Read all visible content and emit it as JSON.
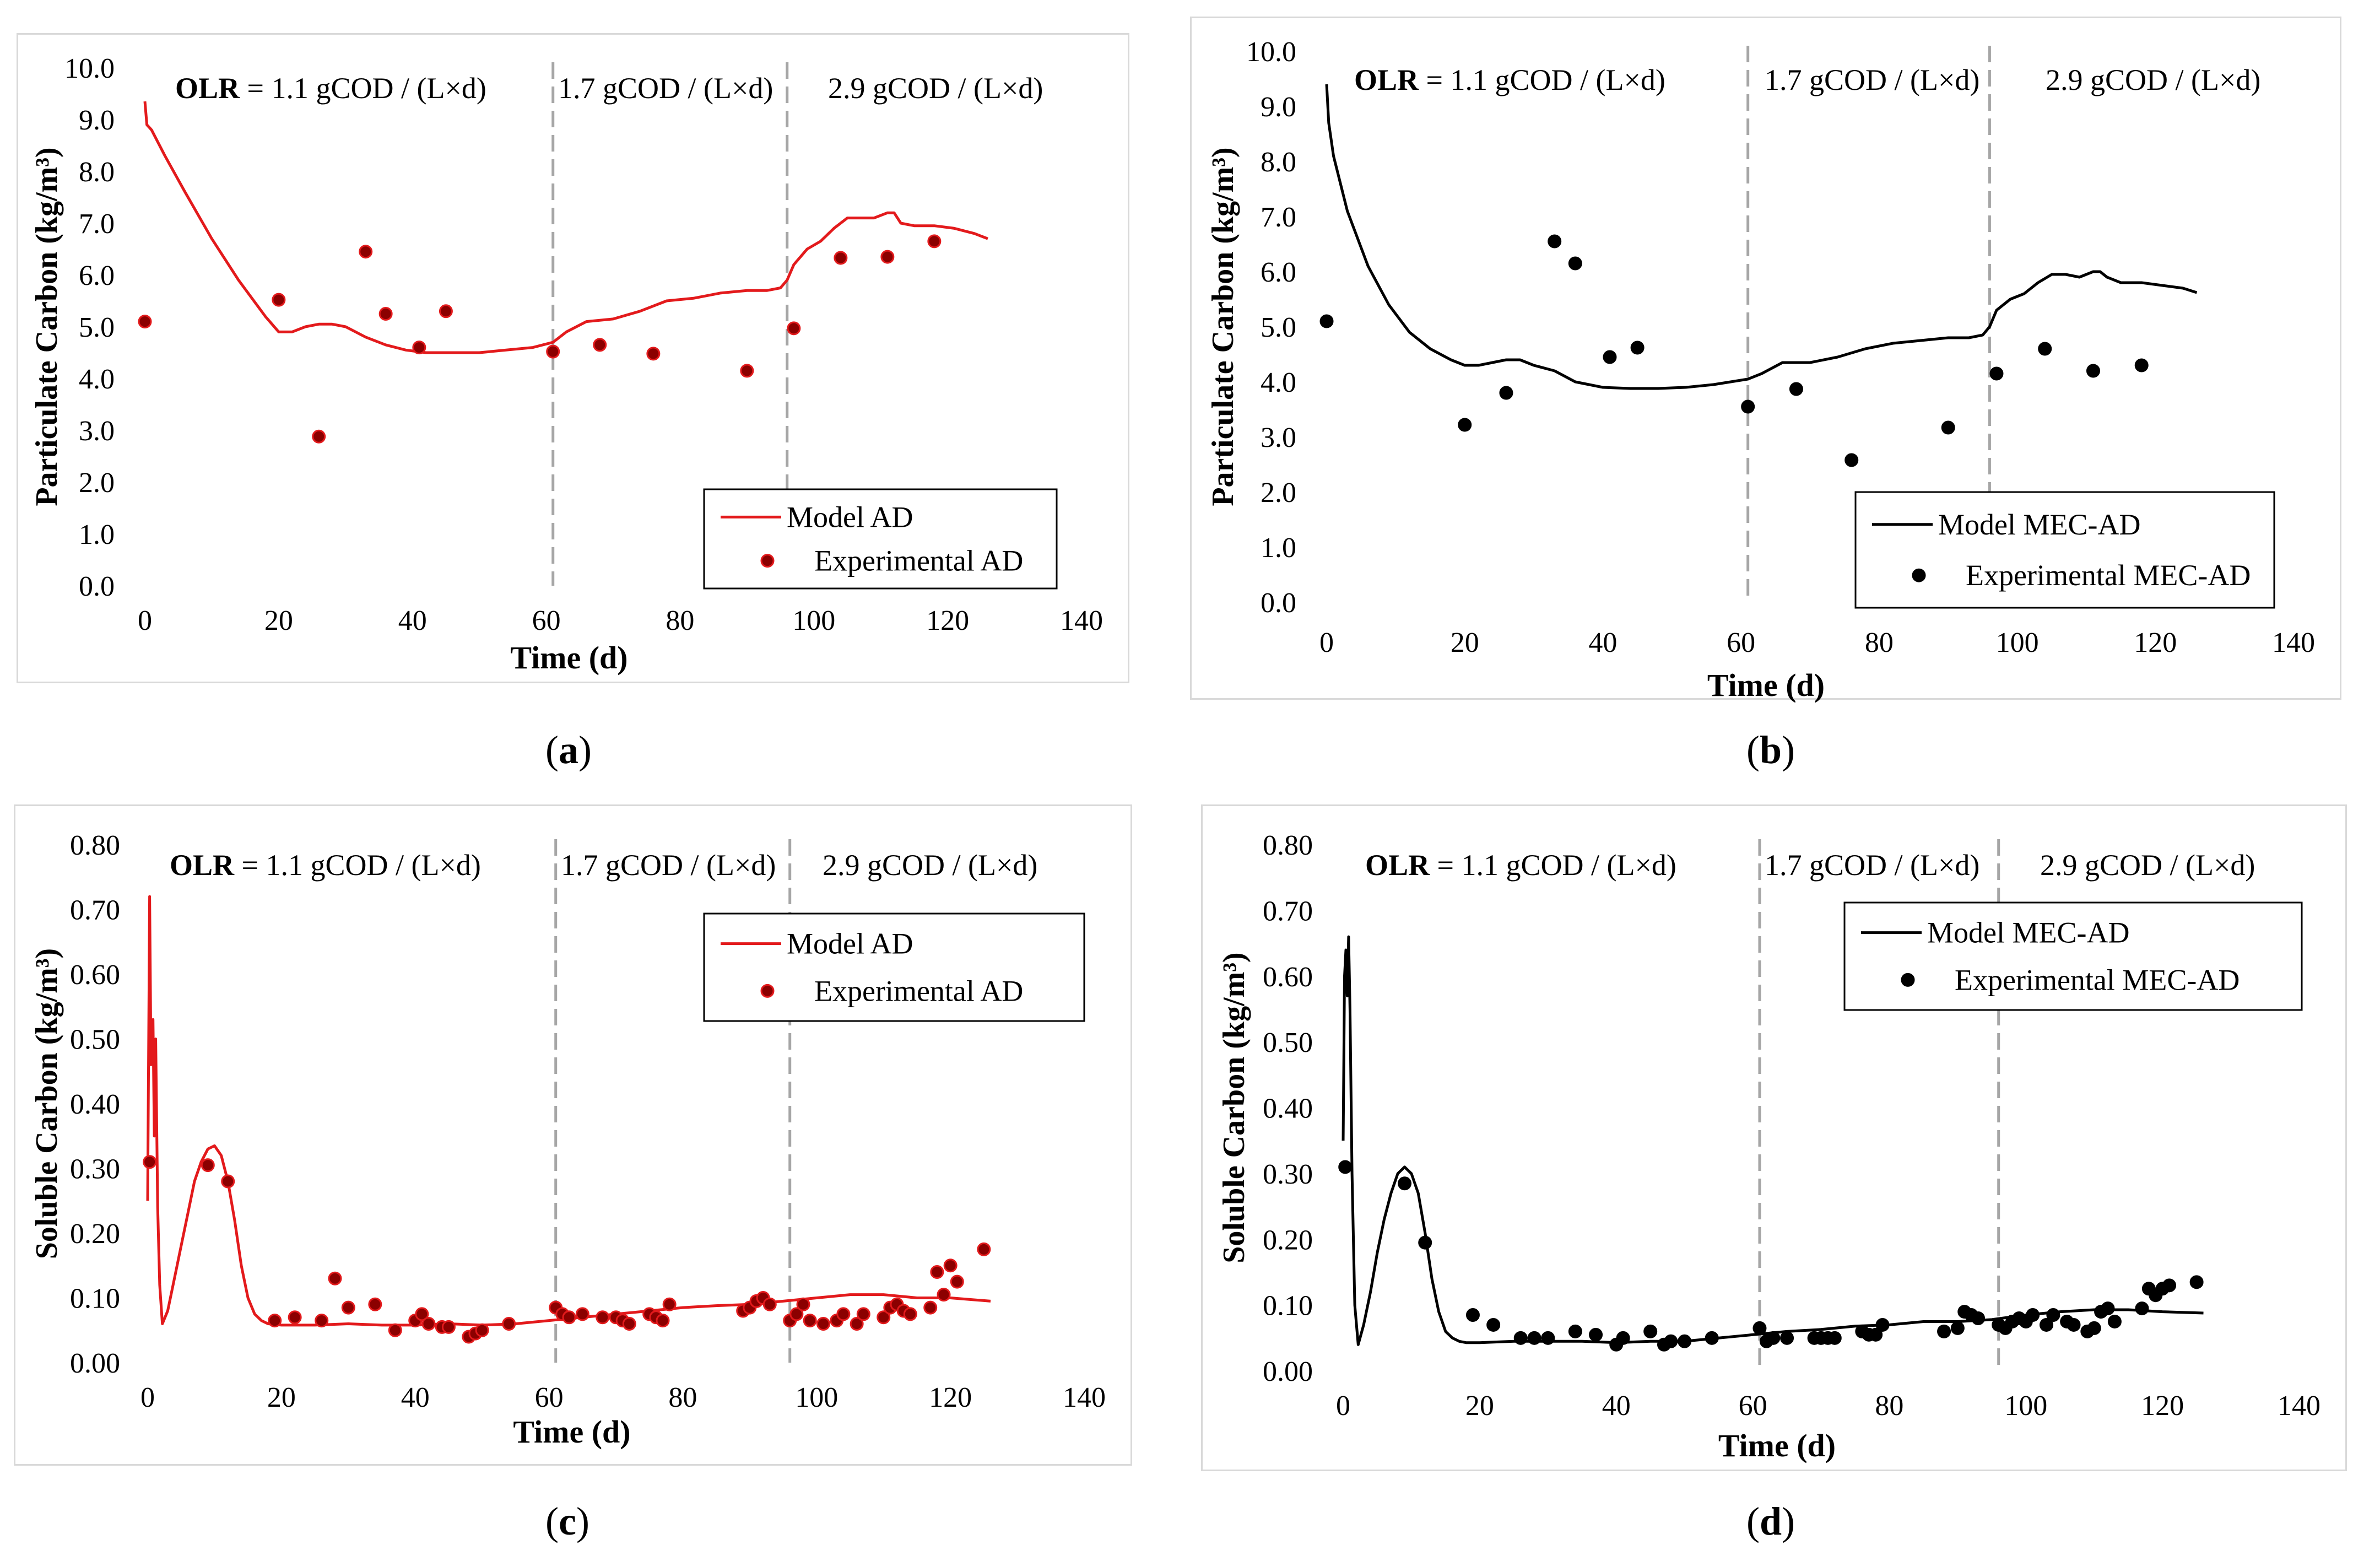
{
  "captions": {
    "a": "a",
    "b": "b",
    "c": "c",
    "d": "d"
  },
  "colors": {
    "red_line": "#e31a1c",
    "red_marker_fill": "#8b0000",
    "black": "#000000",
    "divider": "#a6a6a6",
    "grid": "#d9d9d9"
  },
  "chart_data": [
    {
      "id": "a",
      "type": "line",
      "xlabel": "Time (d)",
      "ylabel": "Particulate Carbon (kg/m³)",
      "xlim": [
        0,
        140
      ],
      "ylim": [
        0,
        10
      ],
      "xticks": [
        "0",
        "20",
        "40",
        "60",
        "80",
        "100",
        "120",
        "140"
      ],
      "yticks": [
        "0.0",
        "1.0",
        "2.0",
        "3.0",
        "4.0",
        "5.0",
        "6.0",
        "7.0",
        "8.0",
        "9.0",
        "10.0"
      ],
      "phase_labels": [
        {
          "bold": "OLR",
          "text": " = 1.1 gCOD / (L×d)"
        },
        {
          "bold": "",
          "text": "1.7 gCOD / (L×d)"
        },
        {
          "bold": "",
          "text": "2.9 gCOD / (L×d)"
        }
      ],
      "phase_dividers": [
        61,
        96
      ],
      "legend": {
        "position": "bottom-right",
        "model": "Model AD",
        "experimental": "Experimental AD"
      },
      "series_style": "red",
      "model": {
        "x": [
          0,
          0.3,
          1,
          3,
          6,
          10,
          14,
          18,
          20,
          22,
          24,
          26,
          28,
          30,
          33,
          36,
          39,
          42,
          46,
          50,
          54,
          58,
          61,
          63,
          66,
          70,
          74,
          78,
          82,
          86,
          90,
          93,
          95,
          96,
          97,
          99,
          101,
          103,
          105,
          107,
          109,
          111,
          112,
          113,
          115,
          118,
          121,
          124,
          126
        ],
        "y": [
          9.35,
          8.9,
          8.8,
          8.3,
          7.6,
          6.7,
          5.9,
          5.2,
          4.9,
          4.9,
          5.0,
          5.05,
          5.05,
          5.0,
          4.8,
          4.65,
          4.55,
          4.5,
          4.5,
          4.5,
          4.55,
          4.6,
          4.7,
          4.9,
          5.1,
          5.15,
          5.3,
          5.5,
          5.55,
          5.65,
          5.7,
          5.7,
          5.75,
          5.9,
          6.2,
          6.5,
          6.65,
          6.9,
          7.1,
          7.1,
          7.1,
          7.2,
          7.2,
          7.0,
          6.95,
          6.95,
          6.9,
          6.8,
          6.7
        ]
      },
      "experimental": {
        "x": [
          0,
          20,
          26,
          33,
          36,
          41,
          45,
          61,
          68,
          76,
          90,
          97,
          104,
          111,
          118
        ],
        "y": [
          5.1,
          5.52,
          2.88,
          6.45,
          5.25,
          4.6,
          5.3,
          4.52,
          4.65,
          4.48,
          4.15,
          4.97,
          6.33,
          6.35,
          6.65
        ]
      }
    },
    {
      "id": "b",
      "type": "line",
      "xlabel": "Time (d)",
      "ylabel": "Particulate Carbon (kg/m³)",
      "xlim": [
        0,
        140
      ],
      "ylim": [
        0,
        10
      ],
      "xticks": [
        "0",
        "20",
        "40",
        "60",
        "80",
        "100",
        "120",
        "140"
      ],
      "yticks": [
        "0.0",
        "1.0",
        "2.0",
        "3.0",
        "4.0",
        "5.0",
        "6.0",
        "7.0",
        "8.0",
        "9.0",
        "10.0"
      ],
      "phase_labels": [
        {
          "bold": "OLR",
          "text": " = 1.1 gCOD / (L×d)"
        },
        {
          "bold": "",
          "text": "1.7 gCOD / (L×d)"
        },
        {
          "bold": "",
          "text": "2.9 gCOD / (L×d)"
        }
      ],
      "phase_dividers": [
        61,
        96
      ],
      "legend": {
        "position": "bottom-right",
        "model": "Model MEC-AD",
        "experimental": "Experimental MEC-AD"
      },
      "series_style": "black",
      "model": {
        "x": [
          0,
          0.3,
          1,
          3,
          6,
          9,
          12,
          15,
          18,
          20,
          22,
          24,
          26,
          28,
          30,
          33,
          36,
          40,
          44,
          48,
          52,
          56,
          61,
          63,
          66,
          70,
          74,
          78,
          82,
          86,
          90,
          93,
          95,
          96,
          97,
          99,
          101,
          103,
          105,
          107,
          109,
          111,
          112,
          113,
          115,
          118,
          121,
          124,
          126
        ],
        "y": [
          9.4,
          8.7,
          8.1,
          7.1,
          6.1,
          5.4,
          4.9,
          4.6,
          4.4,
          4.3,
          4.3,
          4.35,
          4.4,
          4.4,
          4.3,
          4.2,
          4.0,
          3.9,
          3.88,
          3.88,
          3.9,
          3.95,
          4.05,
          4.15,
          4.35,
          4.35,
          4.45,
          4.6,
          4.7,
          4.75,
          4.8,
          4.8,
          4.85,
          5.0,
          5.3,
          5.5,
          5.6,
          5.8,
          5.95,
          5.95,
          5.9,
          6.0,
          6.0,
          5.9,
          5.8,
          5.8,
          5.75,
          5.7,
          5.62
        ]
      },
      "experimental": {
        "x": [
          0,
          20,
          26,
          33,
          36,
          41,
          45,
          61,
          68,
          76,
          90,
          97,
          104,
          111,
          118
        ],
        "y": [
          5.1,
          3.22,
          3.8,
          6.55,
          6.15,
          4.45,
          4.62,
          3.55,
          3.87,
          2.58,
          3.17,
          4.15,
          4.6,
          4.2,
          4.3
        ]
      }
    },
    {
      "id": "c",
      "type": "line",
      "xlabel": "Time (d)",
      "ylabel": "Soluble Carbon (kg/m³)",
      "xlim": [
        0,
        140
      ],
      "ylim": [
        0,
        0.8
      ],
      "xticks": [
        "0",
        "20",
        "40",
        "60",
        "80",
        "100",
        "120",
        "140"
      ],
      "yticks": [
        "0.00",
        "0.10",
        "0.20",
        "0.30",
        "0.40",
        "0.50",
        "0.60",
        "0.70",
        "0.80"
      ],
      "phase_labels": [
        {
          "bold": "OLR",
          "text": " = 1.1 gCOD / (L×d)"
        },
        {
          "bold": "",
          "text": "1.7 gCOD / (L×d)"
        },
        {
          "bold": "",
          "text": "2.9 gCOD / (L×d)"
        }
      ],
      "phase_dividers": [
        61,
        96
      ],
      "legend": {
        "position": "top-right",
        "model": "Model AD",
        "experimental": "Experimental AD"
      },
      "series_style": "red",
      "model": {
        "x": [
          0,
          0.3,
          0.5,
          0.8,
          1.0,
          1.2,
          1.5,
          1.8,
          2.2,
          3,
          4,
          5,
          6,
          7,
          8,
          9,
          10,
          11,
          12,
          13,
          14,
          15,
          16,
          17,
          18,
          20,
          25,
          30,
          35,
          40,
          45,
          50,
          55,
          60,
          65,
          70,
          75,
          80,
          85,
          90,
          95,
          100,
          105,
          110,
          115,
          120,
          126
        ],
        "y": [
          0.25,
          0.72,
          0.46,
          0.53,
          0.35,
          0.5,
          0.24,
          0.12,
          0.06,
          0.08,
          0.13,
          0.18,
          0.23,
          0.28,
          0.31,
          0.33,
          0.335,
          0.32,
          0.28,
          0.22,
          0.15,
          0.1,
          0.075,
          0.065,
          0.06,
          0.058,
          0.058,
          0.06,
          0.058,
          0.058,
          0.06,
          0.058,
          0.06,
          0.065,
          0.07,
          0.075,
          0.08,
          0.085,
          0.088,
          0.09,
          0.095,
          0.1,
          0.105,
          0.105,
          0.1,
          0.1,
          0.095
        ]
      },
      "experimental": {
        "x": [
          0.3,
          9,
          12,
          19,
          22,
          26,
          28,
          30,
          34,
          37,
          40,
          41,
          42,
          44,
          45,
          48,
          49,
          50,
          54,
          61,
          62,
          63,
          65,
          68,
          70,
          71,
          72,
          75,
          76,
          77,
          78,
          89,
          90,
          91,
          92,
          93,
          96,
          97,
          98,
          99,
          101,
          103,
          104,
          106,
          107,
          110,
          111,
          112,
          113,
          114,
          117,
          118,
          119,
          120,
          121,
          125
        ],
        "y": [
          0.31,
          0.305,
          0.28,
          0.065,
          0.07,
          0.065,
          0.13,
          0.085,
          0.09,
          0.05,
          0.065,
          0.075,
          0.06,
          0.055,
          0.055,
          0.04,
          0.045,
          0.05,
          0.06,
          0.085,
          0.075,
          0.07,
          0.075,
          0.07,
          0.07,
          0.065,
          0.06,
          0.075,
          0.07,
          0.065,
          0.09,
          0.08,
          0.085,
          0.095,
          0.1,
          0.09,
          0.065,
          0.075,
          0.09,
          0.065,
          0.06,
          0.065,
          0.075,
          0.06,
          0.075,
          0.07,
          0.085,
          0.09,
          0.08,
          0.075,
          0.085,
          0.14,
          0.105,
          0.15,
          0.125,
          0.175
        ]
      }
    },
    {
      "id": "d",
      "type": "line",
      "xlabel": "Time (d)",
      "ylabel": "Soluble Carbon (kg/m³)",
      "xlim": [
        0,
        140
      ],
      "ylim": [
        0,
        0.8
      ],
      "xticks": [
        "0",
        "20",
        "40",
        "60",
        "80",
        "100",
        "120",
        "140"
      ],
      "yticks": [
        "0.00",
        "0.10",
        "0.20",
        "0.30",
        "0.40",
        "0.50",
        "0.60",
        "0.70",
        "0.80"
      ],
      "phase_labels": [
        {
          "bold": "OLR",
          "text": " = 1.1 gCOD / (L×d)"
        },
        {
          "bold": "",
          "text": "1.7 gCOD / (L×d)"
        },
        {
          "bold": "",
          "text": "2.9 gCOD / (L×d)"
        }
      ],
      "phase_dividers": [
        61,
        96
      ],
      "legend": {
        "position": "top-right",
        "model": "Model MEC-AD",
        "experimental": "Experimental MEC-AD"
      },
      "series_style": "black",
      "model": {
        "x": [
          0,
          0.2,
          0.4,
          0.6,
          0.8,
          1.0,
          1.3,
          1.7,
          2.2,
          3,
          4,
          5,
          6,
          7,
          8,
          9,
          10,
          11,
          12,
          13,
          14,
          15,
          16,
          17,
          18,
          20,
          25,
          30,
          35,
          40,
          45,
          50,
          55,
          60,
          65,
          70,
          75,
          80,
          85,
          90,
          95,
          100,
          105,
          110,
          115,
          120,
          126
        ],
        "y": [
          0.35,
          0.6,
          0.64,
          0.57,
          0.66,
          0.55,
          0.3,
          0.1,
          0.04,
          0.07,
          0.12,
          0.18,
          0.23,
          0.27,
          0.3,
          0.31,
          0.3,
          0.27,
          0.21,
          0.14,
          0.09,
          0.06,
          0.05,
          0.045,
          0.043,
          0.043,
          0.045,
          0.045,
          0.045,
          0.043,
          0.045,
          0.045,
          0.05,
          0.055,
          0.06,
          0.063,
          0.068,
          0.07,
          0.075,
          0.075,
          0.078,
          0.085,
          0.09,
          0.093,
          0.093,
          0.09,
          0.088
        ]
      },
      "experimental": {
        "x": [
          0.3,
          9,
          12,
          19,
          22,
          26,
          28,
          30,
          34,
          37,
          40,
          41,
          45,
          47,
          48,
          50,
          54,
          61,
          62,
          63,
          65,
          69,
          70,
          71,
          72,
          76,
          77,
          78,
          79,
          88,
          90,
          91,
          92,
          93,
          96,
          97,
          98,
          99,
          100,
          101,
          103,
          104,
          106,
          107,
          109,
          110,
          111,
          112,
          113,
          117,
          118,
          119,
          120,
          121,
          125
        ],
        "y": [
          0.31,
          0.285,
          0.195,
          0.085,
          0.07,
          0.05,
          0.05,
          0.05,
          0.06,
          0.055,
          0.04,
          0.05,
          0.06,
          0.04,
          0.045,
          0.045,
          0.05,
          0.065,
          0.045,
          0.05,
          0.05,
          0.05,
          0.05,
          0.05,
          0.05,
          0.06,
          0.055,
          0.055,
          0.07,
          0.06,
          0.065,
          0.09,
          0.085,
          0.08,
          0.07,
          0.065,
          0.075,
          0.08,
          0.075,
          0.085,
          0.07,
          0.085,
          0.075,
          0.07,
          0.06,
          0.065,
          0.09,
          0.095,
          0.075,
          0.095,
          0.125,
          0.115,
          0.125,
          0.13,
          0.135
        ]
      }
    }
  ]
}
